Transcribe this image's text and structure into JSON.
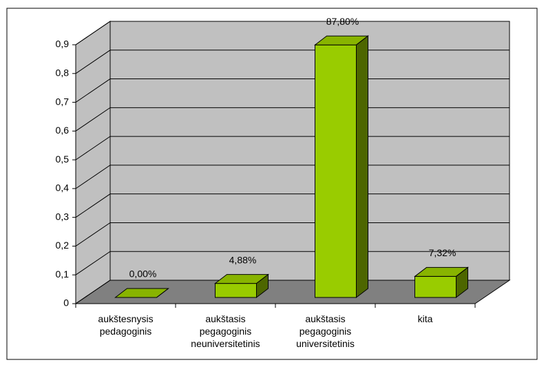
{
  "chart_data": {
    "type": "bar3d",
    "categories": [
      "aukštesnysis pedagoginis",
      "aukštasis pegagoginis neuniversitetinis",
      "aukštasis pegagoginis universitetinis",
      "kita"
    ],
    "values": [
      0,
      0.0488,
      0.878,
      0.0732
    ],
    "value_labels": [
      "0,00%",
      "4,88%",
      "87,80%",
      "7,32%"
    ],
    "color": "#99cc00",
    "ylim": [
      0,
      0.9
    ],
    "yticks": [
      0,
      {
        "value": 0.1,
        "label": "0,1"
      },
      {
        "value": 0.2,
        "label": "0,2"
      },
      {
        "value": 0.3,
        "label": "0,3"
      },
      {
        "value": 0.4,
        "label": "0,4"
      },
      {
        "value": 0.5,
        "label": "0,5"
      },
      {
        "value": 0.6,
        "label": "0,6"
      },
      {
        "value": 0.7,
        "label": "0,7"
      },
      {
        "value": 0.8,
        "label": "0,8"
      },
      {
        "value": 0.9,
        "label": "0,9"
      }
    ],
    "grid": true
  }
}
